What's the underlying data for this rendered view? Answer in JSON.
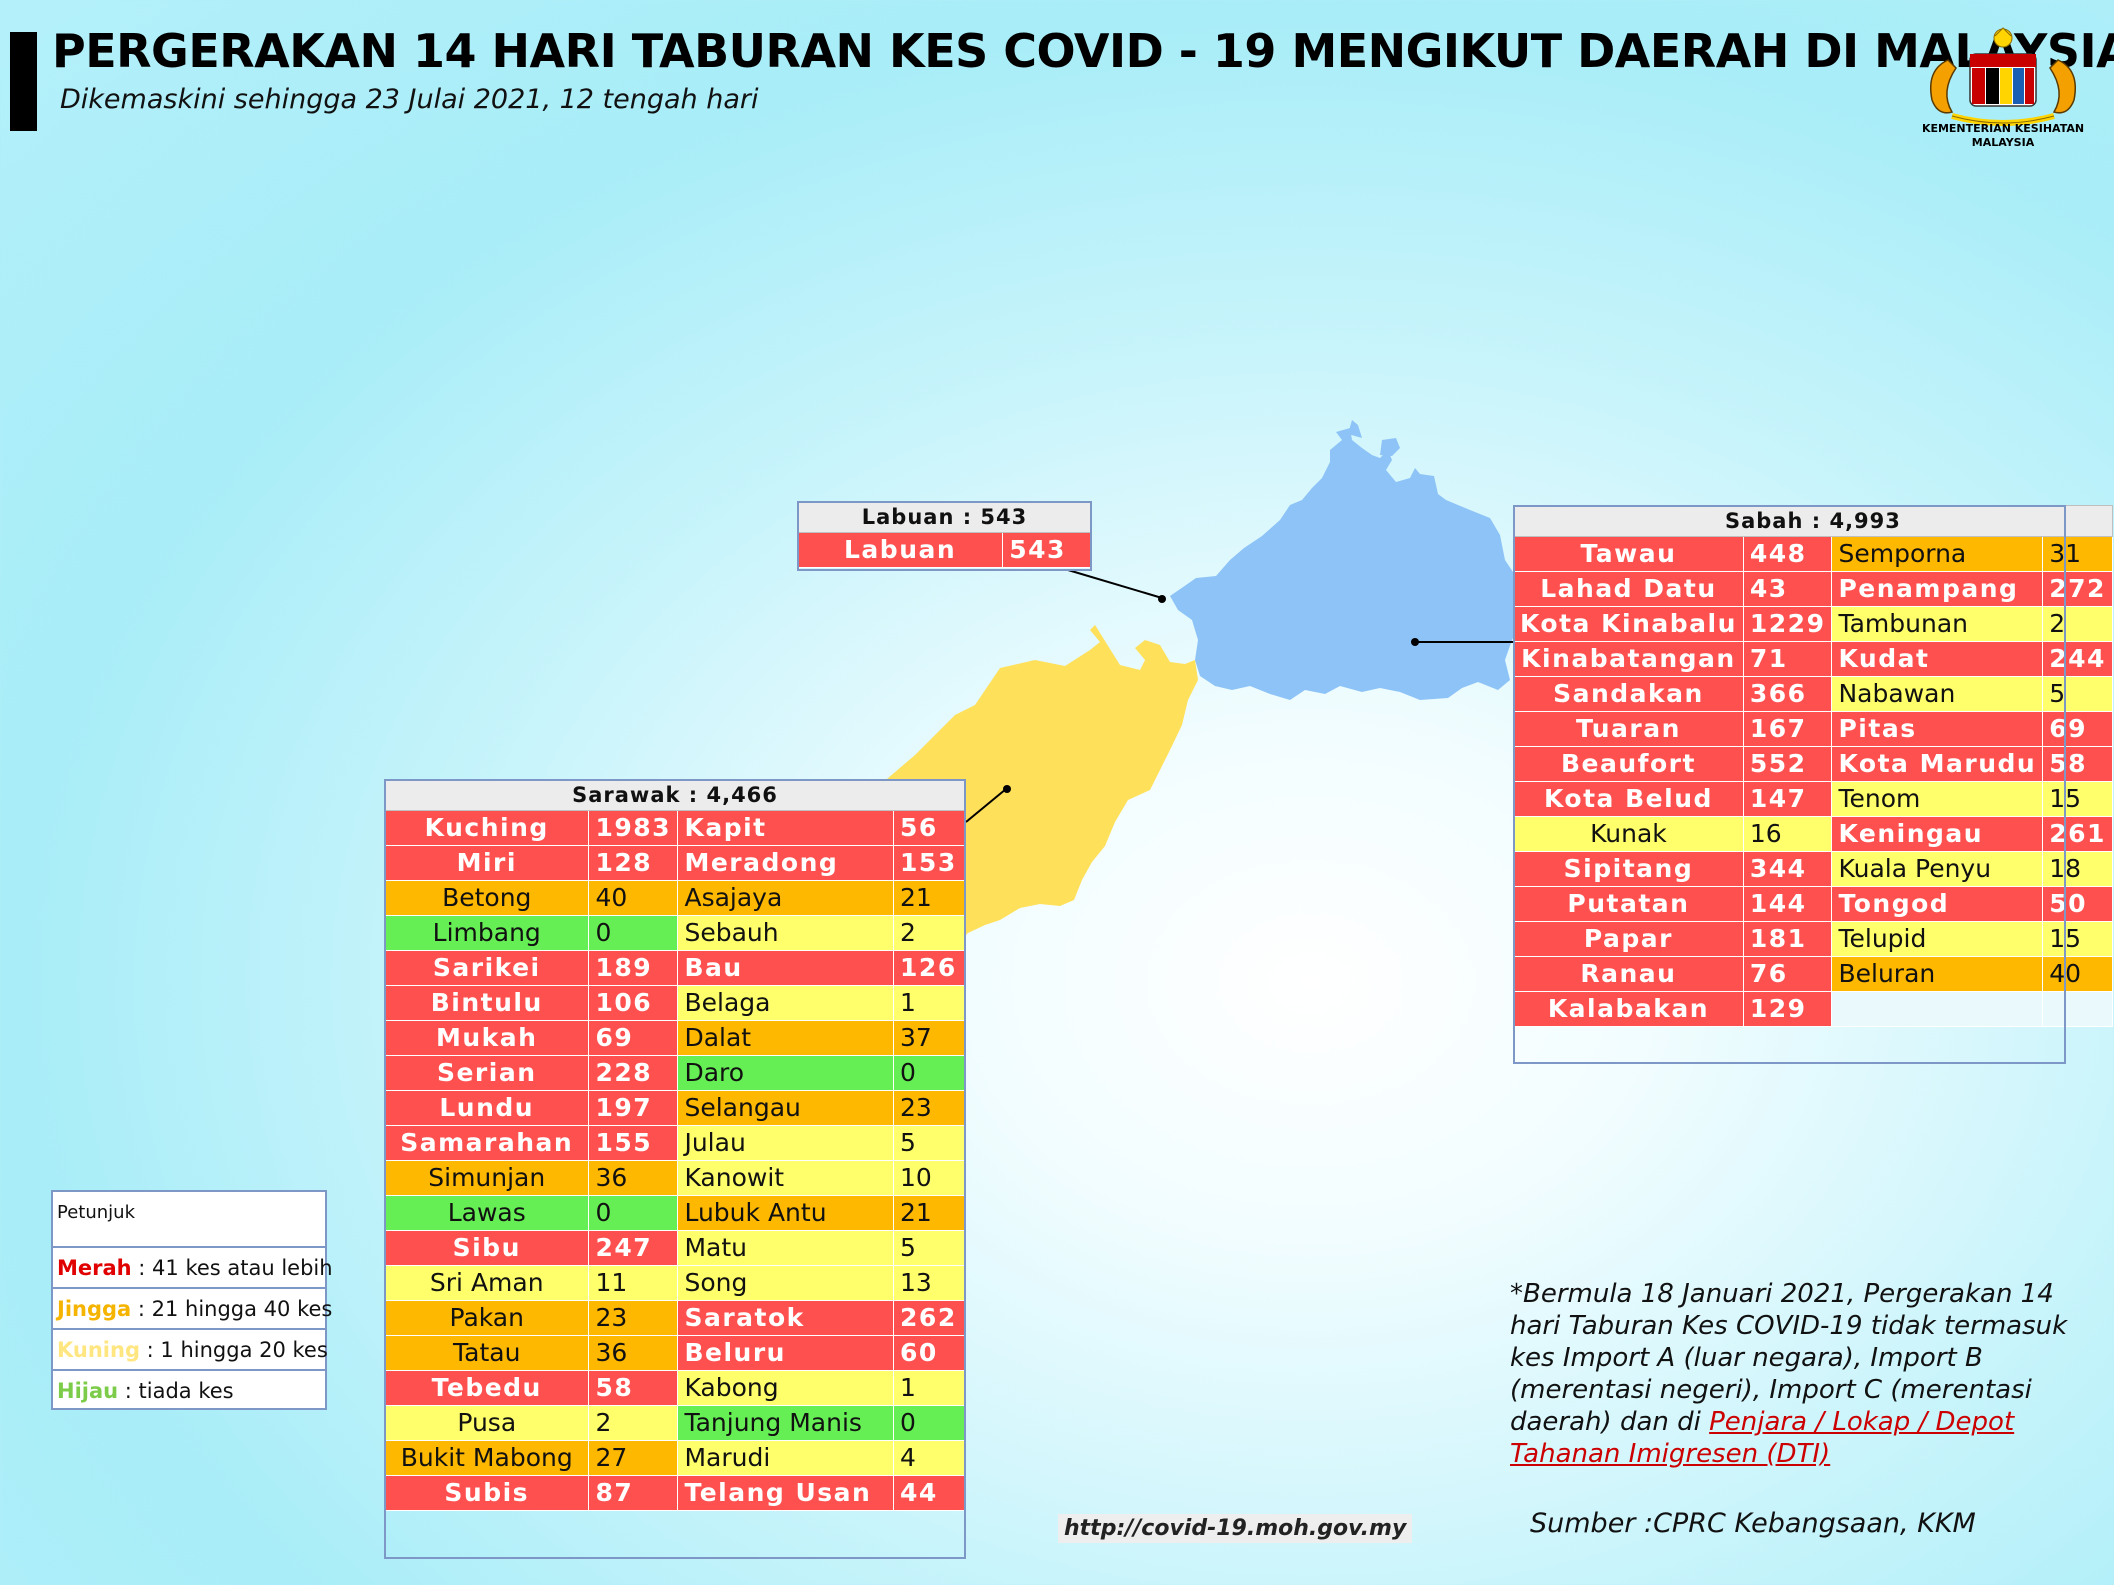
{
  "title": "PERGERAKAN 14 HARI TABURAN KES COVID - 19 MENGIKUT DAERAH DI MALAYSIA",
  "subtitle": "Dikemaskini sehingga 23 Julai 2021, 12 tengah hari",
  "logo": {
    "text1": "KEMENTERIAN KESIHATAN",
    "text2": "MALAYSIA"
  },
  "colors": {
    "merah": "#ff5050",
    "jingga": "#ffb800",
    "kuning": "#ffff6b",
    "hijau": "#66ee55",
    "sabah_map": "#90c2f5",
    "sarawak_map": "#ffe05a"
  },
  "labuan": {
    "header": "Labuan : 543",
    "rows": [
      {
        "name": "Labuan",
        "value": "543",
        "level": "red"
      }
    ]
  },
  "sabah": {
    "header": "Sabah : 4,993",
    "rows": [
      [
        {
          "name": "Tawau",
          "value": "448",
          "level": "red"
        },
        {
          "name": "Semporna",
          "value": "31",
          "level": "orange"
        }
      ],
      [
        {
          "name": "Lahad Datu",
          "value": "43",
          "level": "red"
        },
        {
          "name": "Penampang",
          "value": "272",
          "level": "red"
        }
      ],
      [
        {
          "name": "Kota Kinabalu",
          "value": "1229",
          "level": "red"
        },
        {
          "name": "Tambunan",
          "value": "2",
          "level": "yellow"
        }
      ],
      [
        {
          "name": "Kinabatangan",
          "value": "71",
          "level": "red"
        },
        {
          "name": "Kudat",
          "value": "244",
          "level": "red"
        }
      ],
      [
        {
          "name": "Sandakan",
          "value": "366",
          "level": "red"
        },
        {
          "name": "Nabawan",
          "value": "5",
          "level": "yellow"
        }
      ],
      [
        {
          "name": "Tuaran",
          "value": "167",
          "level": "red"
        },
        {
          "name": "Pitas",
          "value": "69",
          "level": "red"
        }
      ],
      [
        {
          "name": "Beaufort",
          "value": "552",
          "level": "red"
        },
        {
          "name": "Kota Marudu",
          "value": "58",
          "level": "red"
        }
      ],
      [
        {
          "name": "Kota Belud",
          "value": "147",
          "level": "red"
        },
        {
          "name": "Tenom",
          "value": "15",
          "level": "yellow"
        }
      ],
      [
        {
          "name": "Kunak",
          "value": "16",
          "level": "yellow"
        },
        {
          "name": "Keningau",
          "value": "261",
          "level": "red"
        }
      ],
      [
        {
          "name": "Sipitang",
          "value": "344",
          "level": "red"
        },
        {
          "name": "Kuala Penyu",
          "value": "18",
          "level": "yellow"
        }
      ],
      [
        {
          "name": "Putatan",
          "value": "144",
          "level": "red"
        },
        {
          "name": "Tongod",
          "value": "50",
          "level": "red"
        }
      ],
      [
        {
          "name": "Papar",
          "value": "181",
          "level": "red"
        },
        {
          "name": "Telupid",
          "value": "15",
          "level": "yellow"
        }
      ],
      [
        {
          "name": "Ranau",
          "value": "76",
          "level": "red"
        },
        {
          "name": "Beluran",
          "value": "40",
          "level": "orange"
        }
      ],
      [
        {
          "name": "Kalabakan",
          "value": "129",
          "level": "red"
        },
        {
          "name": "",
          "value": "",
          "level": "empty"
        }
      ]
    ]
  },
  "sarawak": {
    "header": "Sarawak : 4,466",
    "rows": [
      [
        {
          "name": "Kuching",
          "value": "1983",
          "level": "red"
        },
        {
          "name": "Kapit",
          "value": "56",
          "level": "red"
        }
      ],
      [
        {
          "name": "Miri",
          "value": "128",
          "level": "red"
        },
        {
          "name": "Meradong",
          "value": "153",
          "level": "red"
        }
      ],
      [
        {
          "name": "Betong",
          "value": "40",
          "level": "orange"
        },
        {
          "name": "Asajaya",
          "value": "21",
          "level": "orange"
        }
      ],
      [
        {
          "name": "Limbang",
          "value": "0",
          "level": "green"
        },
        {
          "name": "Sebauh",
          "value": "2",
          "level": "yellow"
        }
      ],
      [
        {
          "name": "Sarikei",
          "value": "189",
          "level": "red"
        },
        {
          "name": "Bau",
          "value": "126",
          "level": "red"
        }
      ],
      [
        {
          "name": "Bintulu",
          "value": "106",
          "level": "red"
        },
        {
          "name": "Belaga",
          "value": "1",
          "level": "yellow"
        }
      ],
      [
        {
          "name": "Mukah",
          "value": "69",
          "level": "red"
        },
        {
          "name": "Dalat",
          "value": "37",
          "level": "orange"
        }
      ],
      [
        {
          "name": "Serian",
          "value": "228",
          "level": "red"
        },
        {
          "name": "Daro",
          "value": "0",
          "level": "green"
        }
      ],
      [
        {
          "name": "Lundu",
          "value": "197",
          "level": "red"
        },
        {
          "name": "Selangau",
          "value": "23",
          "level": "orange"
        }
      ],
      [
        {
          "name": "Samarahan",
          "value": "155",
          "level": "red"
        },
        {
          "name": "Julau",
          "value": "5",
          "level": "yellow"
        }
      ],
      [
        {
          "name": "Simunjan",
          "value": "36",
          "level": "orange"
        },
        {
          "name": "Kanowit",
          "value": "10",
          "level": "yellow"
        }
      ],
      [
        {
          "name": "Lawas",
          "value": "0",
          "level": "green"
        },
        {
          "name": "Lubuk Antu",
          "value": "21",
          "level": "orange"
        }
      ],
      [
        {
          "name": "Sibu",
          "value": "247",
          "level": "red"
        },
        {
          "name": "Matu",
          "value": "5",
          "level": "yellow"
        }
      ],
      [
        {
          "name": "Sri Aman",
          "value": "11",
          "level": "yellow"
        },
        {
          "name": "Song",
          "value": "13",
          "level": "yellow"
        }
      ],
      [
        {
          "name": "Pakan",
          "value": "23",
          "level": "orange"
        },
        {
          "name": "Saratok",
          "value": "262",
          "level": "red"
        }
      ],
      [
        {
          "name": "Tatau",
          "value": "36",
          "level": "orange"
        },
        {
          "name": "Beluru",
          "value": "60",
          "level": "red"
        }
      ],
      [
        {
          "name": "Tebedu",
          "value": "58",
          "level": "red"
        },
        {
          "name": "Kabong",
          "value": "1",
          "level": "yellow"
        }
      ],
      [
        {
          "name": "Pusa",
          "value": "2",
          "level": "yellow"
        },
        {
          "name": "Tanjung Manis",
          "value": "0",
          "level": "green"
        }
      ],
      [
        {
          "name": "Bukit Mabong",
          "value": "27",
          "level": "orange"
        },
        {
          "name": "Marudi",
          "value": "4",
          "level": "yellow"
        }
      ],
      [
        {
          "name": "Subis",
          "value": "87",
          "level": "red"
        },
        {
          "name": "Telang Usan",
          "value": "44",
          "level": "red"
        }
      ]
    ]
  },
  "legend": {
    "title": "Petunjuk",
    "items": [
      {
        "key": "Merah",
        "text": " : 41 kes atau lebih",
        "color": "#e00000"
      },
      {
        "key": "Jingga",
        "text": " : 21 hingga 40 kes",
        "color": "#f5b400"
      },
      {
        "key": "Kuning",
        "text": " : 1 hingga 20 kes",
        "color": "#ffe680"
      },
      {
        "key": "Hijau",
        "text": " : tiada kes",
        "color": "#7ccc4a"
      }
    ]
  },
  "note": {
    "text": "*Bermula 18 Januari 2021, Pergerakan 14 hari Taburan Kes COVID-19 tidak termasuk kes Import A (luar negara), Import B (merentasi negeri), Import C (merentasi daerah) dan di ",
    "link": "Penjara / Lokap / Depot Tahanan Imigresen (DTI)"
  },
  "source": "Sumber :CPRC Kebangsaan,  KKM",
  "url": "http://covid-19.moh.gov.my"
}
